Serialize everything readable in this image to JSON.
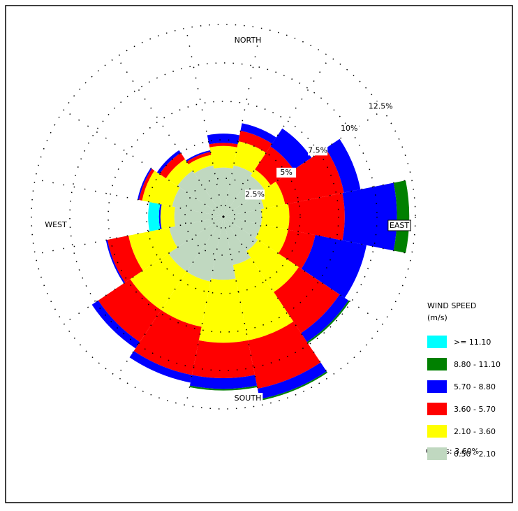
{
  "chart_data": {
    "type": "wind-rose",
    "compass_labels": [
      "NORTH",
      "EAST",
      "SOUTH",
      "WEST"
    ],
    "legend_title": "WIND SPEED",
    "legend_unit": "(m/s)",
    "calms": "Calms: 3.60%",
    "rlim": [
      0,
      12.5
    ],
    "rticks": [
      {
        "value": 2.5,
        "label": "2.5%"
      },
      {
        "value": 5,
        "label": "5%"
      },
      {
        "value": 7.5,
        "label": "7.5%"
      },
      {
        "value": 10,
        "label": "10%"
      },
      {
        "value": 12.5,
        "label": "12.5%"
      }
    ],
    "series": [
      {
        "name": "0.50 - 2.10",
        "color": "#c0d8c0",
        "values": [
          3.2,
          3.4,
          3.2,
          2.7,
          2.5,
          2.5,
          2.7,
          3.2,
          4.1,
          4.3,
          4.3,
          3.6,
          3.2,
          3.4,
          3.6,
          3.4
        ]
      },
      {
        "name": "2.10 - 3.60",
        "color": "#ffff00",
        "values": [
          1.4,
          1.6,
          0.5,
          1.4,
          1.8,
          1.8,
          3.2,
          5.0,
          4.1,
          3.0,
          3.0,
          2.7,
          0.9,
          2.0,
          0.9,
          0.7
        ]
      },
      {
        "name": "3.60 - 5.70",
        "color": "#ff0000",
        "values": [
          0.2,
          0.7,
          1.8,
          3.9,
          3.6,
          1.8,
          3.2,
          3.2,
          2.3,
          3.2,
          2.5,
          1.4,
          0,
          0.2,
          0.5,
          0.2
        ]
      },
      {
        "name": "5.70 - 8.80",
        "color": "#0000ff",
        "values": [
          0.6,
          0.5,
          1.4,
          1.1,
          3.4,
          3.4,
          0.7,
          0.7,
          0.7,
          0.5,
          0.5,
          0.1,
          0.1,
          0.1,
          0.2,
          0.1
        ]
      },
      {
        "name": "8.80 - 11.10",
        "color": "#008000",
        "values": [
          0,
          0,
          0,
          0,
          0.8,
          0,
          0.1,
          0.1,
          0.1,
          0,
          0,
          0,
          0,
          0,
          0,
          0
        ]
      },
      {
        "name": ">= 11.10",
        "color": "#00ffff",
        "values": [
          0,
          0,
          0,
          0,
          0,
          0,
          0,
          0,
          0,
          0,
          0,
          0,
          0.7,
          0,
          0,
          0
        ]
      }
    ]
  }
}
